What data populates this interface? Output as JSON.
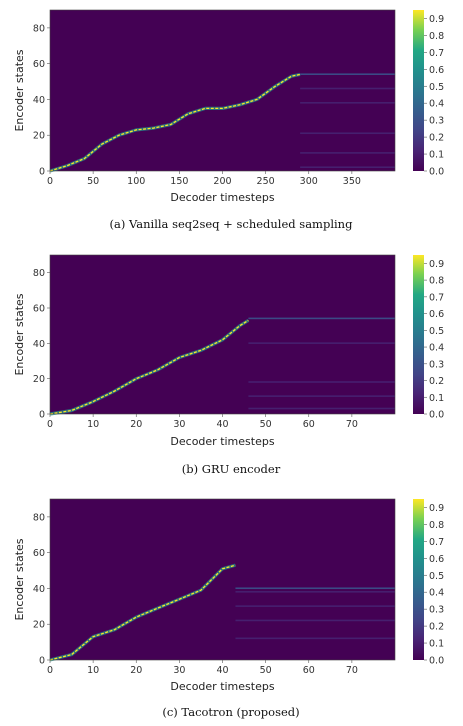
{
  "colors": {
    "low": "#440154",
    "mid": "#21918c",
    "high": "#fde725"
  },
  "chart_data": [
    {
      "type": "heatmap",
      "caption": "(a) Vanilla seq2seq + scheduled sampling",
      "xlabel": "Decoder timesteps",
      "ylabel": "Encoder states",
      "xlim": [
        0,
        400
      ],
      "ylim": [
        0,
        90
      ],
      "xticks": [
        0,
        50,
        100,
        150,
        200,
        250,
        300,
        350
      ],
      "yticks": [
        0,
        20,
        40,
        60,
        80
      ],
      "colorbar_ticks": [
        "0.0",
        "0.1",
        "0.2",
        "0.3",
        "0.4",
        "0.5",
        "0.6",
        "0.7",
        "0.8",
        "0.9"
      ],
      "colorbar_range": [
        0,
        0.95
      ],
      "alignment_path": [
        [
          0,
          0
        ],
        [
          20,
          3
        ],
        [
          40,
          7
        ],
        [
          60,
          15
        ],
        [
          80,
          20
        ],
        [
          100,
          23
        ],
        [
          120,
          24
        ],
        [
          140,
          26
        ],
        [
          160,
          32
        ],
        [
          180,
          35
        ],
        [
          200,
          35
        ],
        [
          220,
          37
        ],
        [
          240,
          40
        ],
        [
          260,
          47
        ],
        [
          280,
          53
        ],
        [
          290,
          54
        ]
      ],
      "path_end_x": 290,
      "trailing_rows": [
        54,
        46,
        38,
        21,
        10,
        2
      ]
    },
    {
      "type": "heatmap",
      "caption": "(b) GRU encoder",
      "xlabel": "Decoder timesteps",
      "ylabel": "Encoder states",
      "xlim": [
        0,
        80
      ],
      "ylim": [
        0,
        90
      ],
      "xticks": [
        0,
        10,
        20,
        30,
        40,
        50,
        60,
        70
      ],
      "yticks": [
        0,
        20,
        40,
        60,
        80
      ],
      "colorbar_ticks": [
        "0.0",
        "0.1",
        "0.2",
        "0.3",
        "0.4",
        "0.5",
        "0.6",
        "0.7",
        "0.8",
        "0.9"
      ],
      "colorbar_range": [
        0,
        0.95
      ],
      "alignment_path": [
        [
          0,
          0
        ],
        [
          5,
          2
        ],
        [
          10,
          7
        ],
        [
          15,
          13
        ],
        [
          20,
          20
        ],
        [
          25,
          25
        ],
        [
          30,
          32
        ],
        [
          35,
          36
        ],
        [
          40,
          42
        ],
        [
          44,
          50
        ],
        [
          46,
          53
        ]
      ],
      "path_end_x": 46,
      "trailing_rows": [
        54,
        40,
        18,
        10,
        3
      ]
    },
    {
      "type": "heatmap",
      "caption": "(c) Tacotron (proposed)",
      "xlabel": "Decoder timesteps",
      "ylabel": "Encoder states",
      "xlim": [
        0,
        80
      ],
      "ylim": [
        0,
        90
      ],
      "xticks": [
        0,
        10,
        20,
        30,
        40,
        50,
        60,
        70
      ],
      "yticks": [
        0,
        20,
        40,
        60,
        80
      ],
      "colorbar_ticks": [
        "0.0",
        "0.1",
        "0.2",
        "0.3",
        "0.4",
        "0.5",
        "0.6",
        "0.7",
        "0.8",
        "0.9"
      ],
      "colorbar_range": [
        0,
        0.95
      ],
      "alignment_path": [
        [
          0,
          0
        ],
        [
          5,
          3
        ],
        [
          10,
          13
        ],
        [
          15,
          17
        ],
        [
          20,
          24
        ],
        [
          25,
          29
        ],
        [
          30,
          34
        ],
        [
          35,
          39
        ],
        [
          40,
          51
        ],
        [
          43,
          53
        ]
      ],
      "path_end_x": 43,
      "trailing_rows": [
        40,
        38,
        30,
        22,
        12
      ]
    }
  ]
}
